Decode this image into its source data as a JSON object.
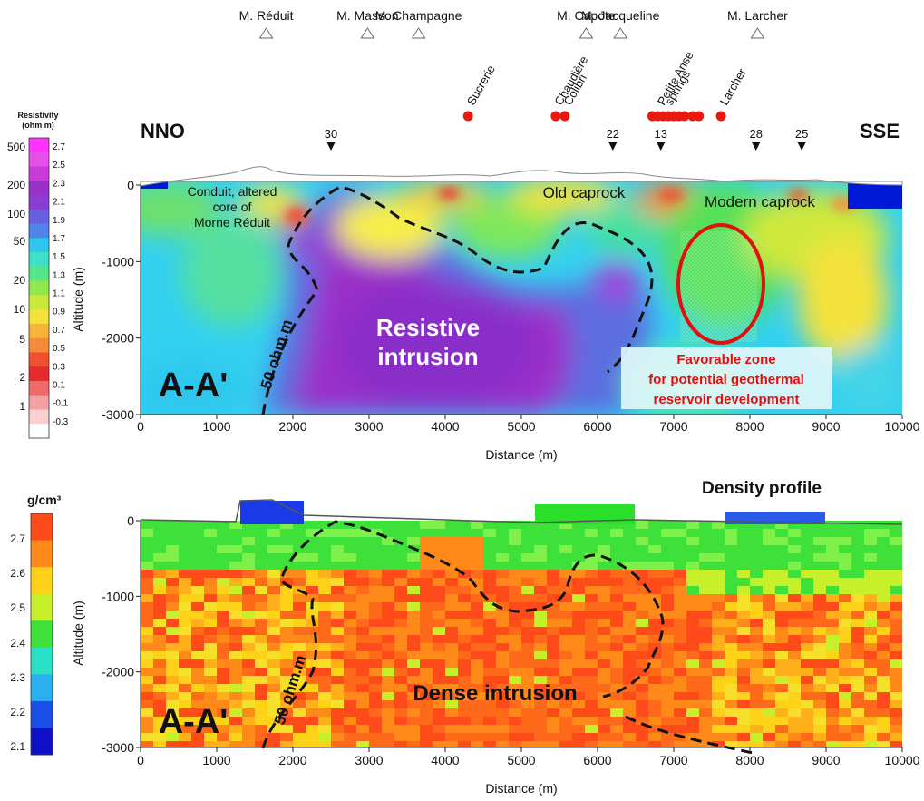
{
  "resistivity_scale": {
    "title_line1": "Resistivity",
    "title_line2": "(ohm m)",
    "ohm_labels": [
      "500",
      "200",
      "100",
      "50",
      "20",
      "10",
      "5",
      "2",
      "1"
    ],
    "log_labels": [
      "2.7",
      "2.5",
      "2.3",
      "2.1",
      "1.9",
      "1.7",
      "1.5",
      "1.3",
      "1.1",
      "0.9",
      "0.7",
      "0.5",
      "0.3",
      "0.1",
      "-0.1",
      "-0.3"
    ],
    "colors": [
      "#ff33ff",
      "#e84fe8",
      "#c93ad6",
      "#9b2fc9",
      "#8a3dd6",
      "#6a5ee0",
      "#4f84e8",
      "#2fc6ee",
      "#3ee0c8",
      "#55e68a",
      "#8fe84a",
      "#cbe83a",
      "#f4e23a",
      "#f8b43a",
      "#f58a3a",
      "#f0502f",
      "#e82a2a",
      "#f06a6a",
      "#f5a0a0",
      "#f8d0d0",
      "#ffffff"
    ]
  },
  "density_scale": {
    "title": "g/cm³",
    "labels": [
      "2.7",
      "2.6",
      "2.5",
      "2.4",
      "2.3",
      "2.2",
      "2.1"
    ],
    "colors": [
      "#ff4a1a",
      "#ff8a1a",
      "#ffd21a",
      "#c8f02a",
      "#3ee03a",
      "#2ae0c8",
      "#2ab0f0",
      "#1a50e8",
      "#1010c8"
    ]
  },
  "volcanoes": [
    {
      "name": "M. Réduit",
      "x": 1650
    },
    {
      "name": "M. Masson",
      "x": 2980
    },
    {
      "name": "M. Champagne",
      "x": 3650
    },
    {
      "name": "M. Capote",
      "x": 5850
    },
    {
      "name": "M. Jacqueline",
      "x": 6300
    },
    {
      "name": "M. Larcher",
      "x": 8100
    }
  ],
  "springs": [
    {
      "name": "Sucrerie",
      "x": 4300
    },
    {
      "name": "Chaudière",
      "x": 5450
    },
    {
      "name": "Colibri",
      "x": 5570
    },
    {
      "name": "Petite Anse",
      "x": 6800
    },
    {
      "name": "springs",
      "x": 6900
    },
    {
      "name": "Larcher",
      "x": 7620
    }
  ],
  "spring_dots_x": [
    4300,
    5450,
    5570,
    6720,
    6790,
    6860,
    6930,
    7000,
    7070,
    7140,
    7250,
    7330,
    7620
  ],
  "stations": [
    {
      "label": "30",
      "x": 2500
    },
    {
      "label": "22",
      "x": 6200
    },
    {
      "label": "13",
      "x": 6830
    },
    {
      "label": "28",
      "x": 8080
    },
    {
      "label": "25",
      "x": 8680
    }
  ],
  "resistivity_panel": {
    "left_end": "NNO",
    "right_end": "SSE",
    "ylabel": "Altitude (m)",
    "xlabel": "Distance (m)",
    "section_label": "A-A'",
    "annotations": {
      "conduit": [
        "Conduit, altered",
        "core of",
        "Morne Réduit"
      ],
      "old_caprock": "Old caprock",
      "modern_caprock": "Modern caprock",
      "intrusion": [
        "Resistive",
        "intrusion"
      ],
      "contour": "50 ohm.m",
      "favorable": [
        "Favorable zone",
        "for potential geothermal",
        "reservoir development"
      ]
    }
  },
  "density_panel": {
    "title": "Density profile",
    "ylabel": "Altitude (m)",
    "xlabel": "Distance (m)",
    "section_label": "A-A'",
    "annotations": {
      "intrusion": "Dense intrusion",
      "contour": "50 ohm.m"
    }
  },
  "axes": {
    "x_ticks": [
      0,
      1000,
      2000,
      3000,
      4000,
      5000,
      6000,
      7000,
      8000,
      9000,
      10000
    ],
    "y_ticks": [
      0,
      -1000,
      -2000,
      -3000
    ],
    "xlim": [
      0,
      10000
    ],
    "ylim": [
      -3000,
      0
    ]
  }
}
